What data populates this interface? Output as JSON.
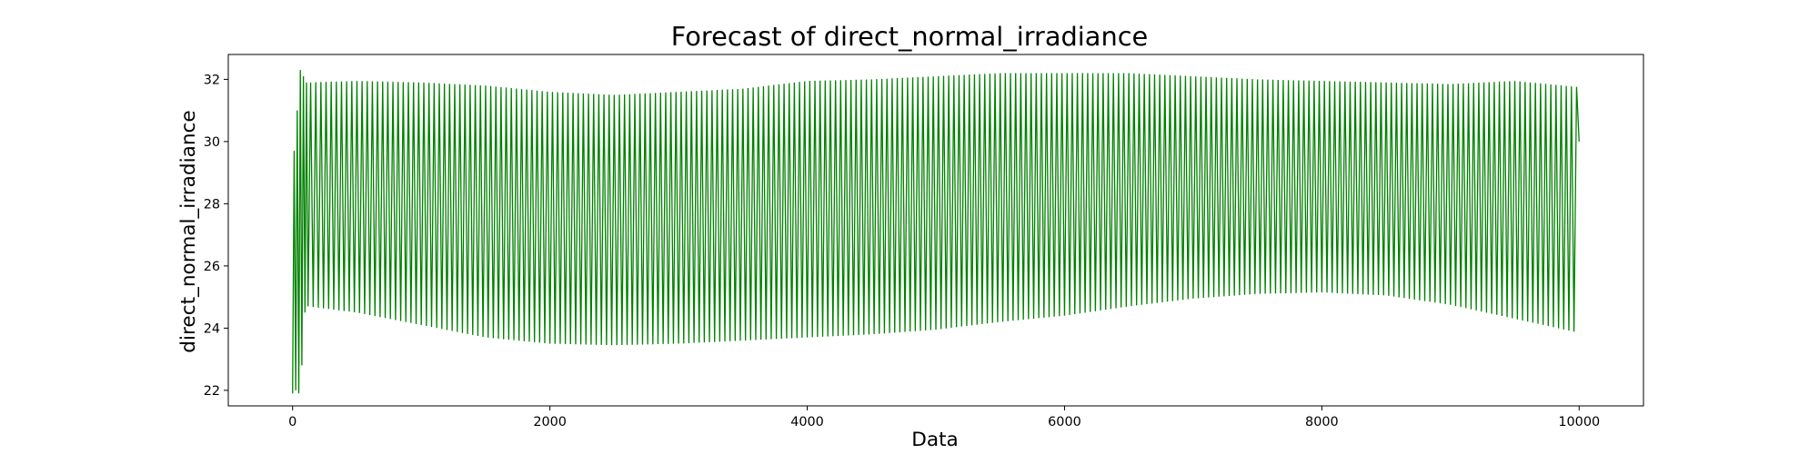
{
  "chart_data": {
    "type": "line",
    "title": "Forecast of direct_normal_irradiance",
    "xlabel": "Data",
    "ylabel": "direct_normal_irradiance",
    "xlim": [
      -500,
      10500
    ],
    "ylim": [
      21.5,
      32.8
    ],
    "xticks": [
      0,
      2000,
      4000,
      6000,
      8000,
      10000
    ],
    "yticks": [
      22,
      24,
      26,
      28,
      30,
      32
    ],
    "xtick_labels": [
      "0",
      "2000",
      "4000",
      "6000",
      "8000",
      "10000"
    ],
    "ytick_labels": [
      "22",
      "24",
      "26",
      "28",
      "30",
      "32"
    ],
    "grid": false,
    "legend": false,
    "series": [
      {
        "color": "#008000",
        "x_start": 0,
        "x_end": 10000,
        "start_points": [
          [
            0,
            21.9
          ],
          [
            12,
            29.7
          ],
          [
            24,
            22.0
          ],
          [
            36,
            31.0
          ],
          [
            48,
            21.9
          ],
          [
            60,
            32.3
          ],
          [
            72,
            22.8
          ],
          [
            84,
            32.1
          ],
          [
            96,
            24.5
          ],
          [
            108,
            31.9
          ],
          [
            120,
            24.7
          ]
        ],
        "upper_envelope": [
          [
            120,
            31.9
          ],
          [
            500,
            31.95
          ],
          [
            1000,
            31.9
          ],
          [
            1500,
            31.8
          ],
          [
            2000,
            31.6
          ],
          [
            2500,
            31.5
          ],
          [
            3000,
            31.6
          ],
          [
            3500,
            31.7
          ],
          [
            4000,
            31.95
          ],
          [
            4500,
            32.0
          ],
          [
            5000,
            32.1
          ],
          [
            5500,
            32.2
          ],
          [
            6000,
            32.2
          ],
          [
            6500,
            32.2
          ],
          [
            7000,
            32.1
          ],
          [
            7500,
            32.0
          ],
          [
            8000,
            31.95
          ],
          [
            8500,
            31.9
          ],
          [
            9000,
            31.85
          ],
          [
            9500,
            31.95
          ],
          [
            10000,
            31.75
          ]
        ],
        "lower_envelope": [
          [
            120,
            24.7
          ],
          [
            500,
            24.5
          ],
          [
            1000,
            24.1
          ],
          [
            1500,
            23.7
          ],
          [
            2000,
            23.5
          ],
          [
            2500,
            23.45
          ],
          [
            3000,
            23.5
          ],
          [
            3500,
            23.6
          ],
          [
            4000,
            23.7
          ],
          [
            4500,
            23.8
          ],
          [
            5000,
            23.95
          ],
          [
            5500,
            24.2
          ],
          [
            6000,
            24.4
          ],
          [
            6500,
            24.7
          ],
          [
            7000,
            24.95
          ],
          [
            7500,
            25.1
          ],
          [
            8000,
            25.15
          ],
          [
            8500,
            25.05
          ],
          [
            9000,
            24.75
          ],
          [
            9500,
            24.3
          ],
          [
            10000,
            23.85
          ]
        ],
        "oscillation_period": 40,
        "end_value": 30.0
      }
    ]
  }
}
